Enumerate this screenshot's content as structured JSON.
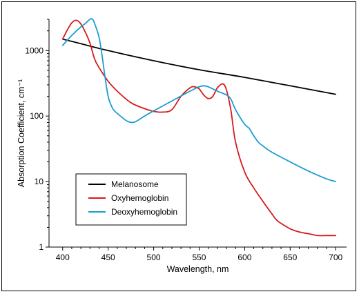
{
  "chart_data": {
    "type": "line",
    "title": "",
    "xlabel": "Wavelength, nm",
    "ylabel": "Absorption Coefficient, cm⁻¹",
    "x_scale": "linear",
    "y_scale": "log",
    "xlim": [
      385,
      712
    ],
    "ylim": [
      1,
      3000
    ],
    "x_ticks": [
      400,
      450,
      500,
      550,
      600,
      650,
      700
    ],
    "x_tick_labels": [
      "400",
      "450",
      "500",
      "550",
      "600",
      "650",
      "700"
    ],
    "y_ticks": [
      1,
      10,
      100,
      1000
    ],
    "y_tick_labels": [
      "1",
      "10",
      "100",
      "1000"
    ],
    "grid": false,
    "legend_position": "bottom-left",
    "series": [
      {
        "name": "Melanosome",
        "color": "#000000",
        "x": [
          400,
          450,
          500,
          550,
          600,
          650,
          700
        ],
        "y": [
          1500,
          1000,
          700,
          510,
          390,
          290,
          215
        ]
      },
      {
        "name": "Oxyhemoglobin",
        "color": "#d7191c",
        "x": [
          400,
          405,
          410,
          415,
          420,
          425,
          430,
          435,
          440,
          450,
          460,
          475,
          490,
          500,
          510,
          520,
          530,
          540,
          545,
          550,
          555,
          560,
          565,
          570,
          576,
          580,
          585,
          590,
          600,
          610,
          620,
          630,
          635,
          640,
          650,
          660,
          670,
          680,
          690,
          700
        ],
        "y": [
          1500,
          2050,
          2650,
          2900,
          2550,
          1900,
          1300,
          750,
          550,
          340,
          240,
          160,
          130,
          118,
          115,
          125,
          200,
          270,
          280,
          260,
          210,
          185,
          200,
          270,
          310,
          250,
          120,
          40,
          14,
          8,
          5,
          3.2,
          2.6,
          2.3,
          1.9,
          1.7,
          1.6,
          1.5,
          1.5,
          1.5
        ]
      },
      {
        "name": "Deoxyhemoglobin",
        "color": "#1a9dd1",
        "x": [
          400,
          410,
          420,
          425,
          430,
          433,
          436,
          440,
          443,
          446,
          450,
          455,
          460,
          470,
          475,
          480,
          490,
          500,
          520,
          540,
          550,
          555,
          560,
          570,
          580,
          585,
          590,
          600,
          605,
          610,
          615,
          620,
          630,
          650,
          670,
          690,
          700
        ],
        "y": [
          1200,
          1700,
          2300,
          2600,
          3000,
          3000,
          2400,
          1600,
          900,
          450,
          200,
          130,
          110,
          85,
          80,
          82,
          100,
          120,
          170,
          240,
          280,
          290,
          280,
          240,
          210,
          180,
          125,
          75,
          65,
          50,
          40,
          35,
          28,
          20,
          14.5,
          11,
          10
        ]
      }
    ]
  }
}
